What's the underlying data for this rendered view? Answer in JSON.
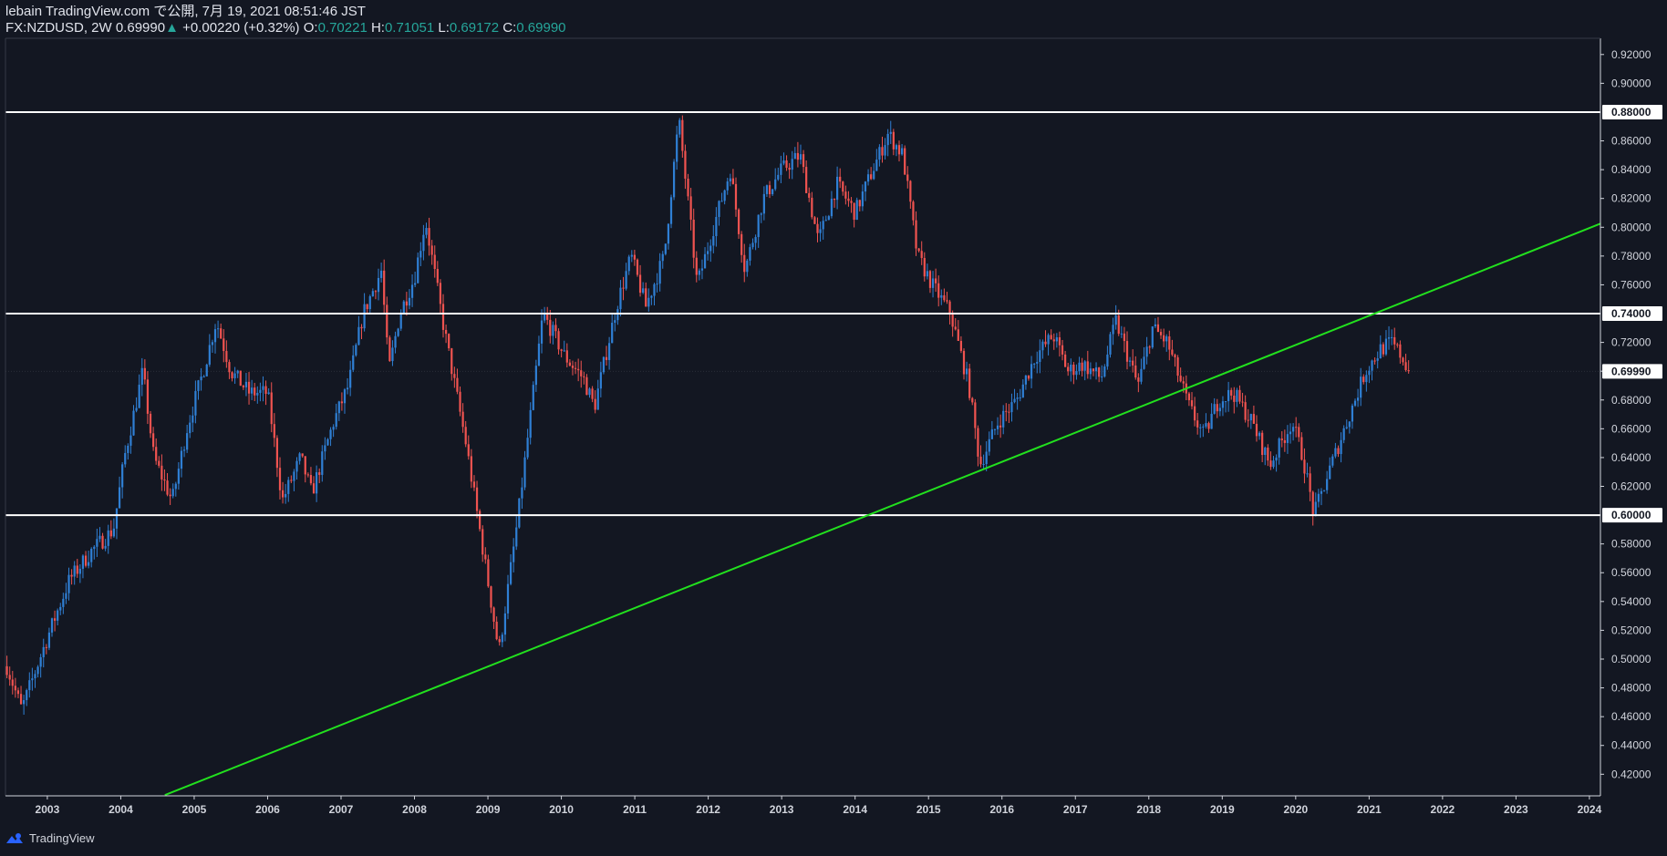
{
  "header": {
    "line1": "lebain TradingView.com で公開, 7月 19, 2021 08:51:46 JST",
    "symbol": "FX:NZDUSD, 2W",
    "last": "0.69990",
    "change_arrow": "▲",
    "change": "+0.00220 (+0.32%)",
    "o_label": "O:",
    "o": "0.70221",
    "h_label": "H:",
    "h": "0.71051",
    "l_label": "L:",
    "l": "0.69172",
    "c_label": "C:",
    "c": "0.69990"
  },
  "colors": {
    "background": "#131722",
    "up": "#2f7fd4",
    "down": "#ef5350",
    "horizontal_line": "#ffffff",
    "trendline": "#22e01e",
    "axis_text": "#d1d4dc"
  },
  "footer": {
    "brand": "TradingView",
    "logo_icon": "tradingview-logo-icon"
  },
  "chart_data": {
    "type": "candlestick",
    "symbol": "FX:NZDUSD",
    "interval": "2W",
    "ylim": [
      0.405,
      0.93
    ],
    "yticks": [
      "0.92000",
      "0.90000",
      "0.86000",
      "0.84000",
      "0.82000",
      "0.80000",
      "0.78000",
      "0.76000",
      "0.72000",
      "0.70000",
      "0.68000",
      "0.66000",
      "0.64000",
      "0.62000",
      "0.58000",
      "0.56000",
      "0.54000",
      "0.52000",
      "0.50000",
      "0.48000",
      "0.46000",
      "0.44000",
      "0.42000"
    ],
    "price_tags": [
      "0.88000",
      "0.74000",
      "0.69990",
      "0.60000"
    ],
    "xlim": [
      2002.43,
      2024.15
    ],
    "xticks": [
      "2003",
      "2004",
      "2005",
      "2006",
      "2007",
      "2008",
      "2009",
      "2010",
      "2011",
      "2012",
      "2013",
      "2014",
      "2015",
      "2016",
      "2017",
      "2018",
      "2019",
      "2020",
      "2021",
      "2022",
      "2023",
      "2024"
    ],
    "horizontal_lines": [
      0.88,
      0.74,
      0.6
    ],
    "trendline": {
      "x1": 2004.6,
      "y1": 0.4055,
      "x2": 2024.15,
      "y2": 0.8025
    },
    "last_price": 0.6999,
    "anchors": [
      [
        2002.45,
        0.495
      ],
      [
        2002.65,
        0.465
      ],
      [
        2003.0,
        0.515
      ],
      [
        2003.3,
        0.555
      ],
      [
        2003.6,
        0.575
      ],
      [
        2003.9,
        0.59
      ],
      [
        2004.05,
        0.64
      ],
      [
        2004.3,
        0.7
      ],
      [
        2004.45,
        0.64
      ],
      [
        2004.7,
        0.61
      ],
      [
        2004.9,
        0.66
      ],
      [
        2005.15,
        0.705
      ],
      [
        2005.3,
        0.735
      ],
      [
        2005.5,
        0.7
      ],
      [
        2005.75,
        0.685
      ],
      [
        2006.0,
        0.685
      ],
      [
        2006.2,
        0.61
      ],
      [
        2006.45,
        0.64
      ],
      [
        2006.6,
        0.615
      ],
      [
        2006.9,
        0.665
      ],
      [
        2007.1,
        0.69
      ],
      [
        2007.3,
        0.74
      ],
      [
        2007.55,
        0.77
      ],
      [
        2007.65,
        0.7
      ],
      [
        2007.8,
        0.74
      ],
      [
        2008.0,
        0.765
      ],
      [
        2008.15,
        0.805
      ],
      [
        2008.4,
        0.73
      ],
      [
        2008.7,
        0.65
      ],
      [
        2008.95,
        0.57
      ],
      [
        2009.15,
        0.505
      ],
      [
        2009.4,
        0.595
      ],
      [
        2009.75,
        0.74
      ],
      [
        2010.05,
        0.71
      ],
      [
        2010.3,
        0.695
      ],
      [
        2010.45,
        0.675
      ],
      [
        2010.75,
        0.745
      ],
      [
        2010.95,
        0.78
      ],
      [
        2011.15,
        0.745
      ],
      [
        2011.4,
        0.78
      ],
      [
        2011.6,
        0.875
      ],
      [
        2011.85,
        0.76
      ],
      [
        2012.1,
        0.805
      ],
      [
        2012.3,
        0.84
      ],
      [
        2012.5,
        0.77
      ],
      [
        2012.75,
        0.82
      ],
      [
        2013.0,
        0.84
      ],
      [
        2013.25,
        0.85
      ],
      [
        2013.5,
        0.79
      ],
      [
        2013.75,
        0.83
      ],
      [
        2014.0,
        0.81
      ],
      [
        2014.2,
        0.835
      ],
      [
        2014.45,
        0.865
      ],
      [
        2014.65,
        0.85
      ],
      [
        2014.85,
        0.78
      ],
      [
        2015.05,
        0.76
      ],
      [
        2015.3,
        0.74
      ],
      [
        2015.55,
        0.69
      ],
      [
        2015.7,
        0.635
      ],
      [
        2015.95,
        0.665
      ],
      [
        2016.2,
        0.68
      ],
      [
        2016.45,
        0.71
      ],
      [
        2016.7,
        0.725
      ],
      [
        2016.9,
        0.7
      ],
      [
        2017.1,
        0.705
      ],
      [
        2017.35,
        0.695
      ],
      [
        2017.55,
        0.735
      ],
      [
        2017.85,
        0.69
      ],
      [
        2018.05,
        0.73
      ],
      [
        2018.25,
        0.72
      ],
      [
        2018.55,
        0.675
      ],
      [
        2018.75,
        0.655
      ],
      [
        2018.95,
        0.68
      ],
      [
        2019.15,
        0.685
      ],
      [
        2019.4,
        0.665
      ],
      [
        2019.65,
        0.635
      ],
      [
        2019.95,
        0.665
      ],
      [
        2020.1,
        0.64
      ],
      [
        2020.25,
        0.6
      ],
      [
        2020.45,
        0.63
      ],
      [
        2020.7,
        0.665
      ],
      [
        2020.95,
        0.7
      ],
      [
        2021.15,
        0.715
      ],
      [
        2021.3,
        0.72
      ],
      [
        2021.45,
        0.71
      ],
      [
        2021.54,
        0.7
      ]
    ]
  }
}
